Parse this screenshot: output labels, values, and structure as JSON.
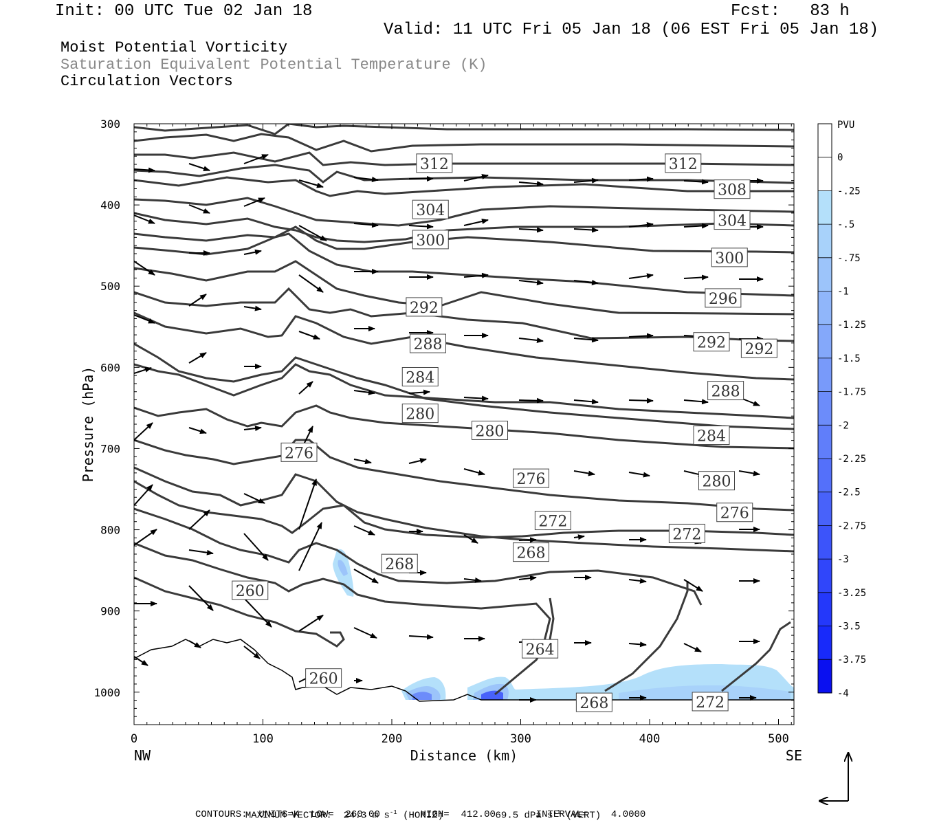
{
  "header": {
    "init": "Init: 00 UTC Tue 02 Jan 18",
    "fcst": "Fcst:   83 h",
    "valid": "Valid: 11 UTC Fri 05 Jan 18 (06 EST Fri 05 Jan 18)",
    "field1": "Moist Potential Vorticity",
    "field2": "Saturation Equivalent Potential Temperature (K)",
    "field3": "Circulation Vectors"
  },
  "colors": {
    "contour": "#3a3a3a",
    "pv_shades": [
      "#ffffff",
      "#ffffff",
      "#b4e0fa",
      "#a8d2fa",
      "#9cc4fa",
      "#90b6fa",
      "#84a8fa",
      "#789afa",
      "#6c8cfa",
      "#607efa",
      "#5470fa",
      "#4862fa",
      "#3c54fa",
      "#3046fa",
      "#2438fa",
      "#182afa",
      "#0a10f0"
    ]
  },
  "chart_data": {
    "type": "cross-section",
    "xlabel": "Distance (km)",
    "ylabel": "Pressure (hPa)",
    "xlim": [
      0,
      512
    ],
    "ylim": [
      1040,
      300
    ],
    "x_ticks": [
      0,
      100,
      200,
      300,
      400,
      500
    ],
    "y_ticks": [
      300,
      400,
      500,
      600,
      700,
      800,
      900,
      1000
    ],
    "x_endpoints": {
      "left": "NW",
      "right": "SE"
    },
    "colorbar": {
      "unit": "PVU",
      "labels": [
        "0",
        "-.25",
        "-.5",
        "-.75",
        "-1",
        "-1.25",
        "-1.5",
        "-1.75",
        "-2",
        "-2.25",
        "-2.5",
        "-2.75",
        "-3",
        "-3.25",
        "-3.5",
        "-3.75",
        "-4"
      ]
    },
    "contour_labels": [
      {
        "text": "312",
        "x": 233,
        "p": 349
      },
      {
        "text": "312",
        "x": 426,
        "p": 349
      },
      {
        "text": "308",
        "x": 464,
        "p": 381
      },
      {
        "text": "304",
        "x": 230,
        "p": 406
      },
      {
        "text": "304",
        "x": 464,
        "p": 419
      },
      {
        "text": "300",
        "x": 230,
        "p": 443
      },
      {
        "text": "300",
        "x": 462,
        "p": 465
      },
      {
        "text": "296",
        "x": 457,
        "p": 515
      },
      {
        "text": "292",
        "x": 225,
        "p": 526
      },
      {
        "text": "292",
        "x": 448,
        "p": 569
      },
      {
        "text": "292",
        "x": 485,
        "p": 577
      },
      {
        "text": "288",
        "x": 228,
        "p": 571
      },
      {
        "text": "288",
        "x": 459,
        "p": 629
      },
      {
        "text": "284",
        "x": 222,
        "p": 612
      },
      {
        "text": "284",
        "x": 448,
        "p": 684
      },
      {
        "text": "280",
        "x": 222,
        "p": 657
      },
      {
        "text": "280",
        "x": 276,
        "p": 678
      },
      {
        "text": "280",
        "x": 452,
        "p": 740
      },
      {
        "text": "276",
        "x": 128,
        "p": 705
      },
      {
        "text": "276",
        "x": 308,
        "p": 737
      },
      {
        "text": "276",
        "x": 466,
        "p": 779
      },
      {
        "text": "272",
        "x": 325,
        "p": 789
      },
      {
        "text": "272",
        "x": 429,
        "p": 805
      },
      {
        "text": "268",
        "x": 206,
        "p": 842
      },
      {
        "text": "268",
        "x": 308,
        "p": 828
      },
      {
        "text": "264",
        "x": 315,
        "p": 947
      },
      {
        "text": "260",
        "x": 90,
        "p": 875
      },
      {
        "text": "260",
        "x": 147,
        "p": 983
      },
      {
        "text": "268",
        "x": 357,
        "p": 1013
      },
      {
        "text": "272",
        "x": 447,
        "p": 1012
      }
    ],
    "footer": {
      "max_vector_prefix": "MAXIMUM VECTOR:",
      "horiz_value": "24.3 m s",
      "horiz_exp": "-1",
      "horiz_suffix": "(HORIZ)",
      "vert_value": "69.5 dPa s",
      "vert_exp": "-1",
      "vert_suffix": "(VERT)",
      "contours": "CONTOURS:  UNITS=K  LOW=  260.00       HIGH=  412.00       INTERVAL=    4.0000"
    }
  }
}
